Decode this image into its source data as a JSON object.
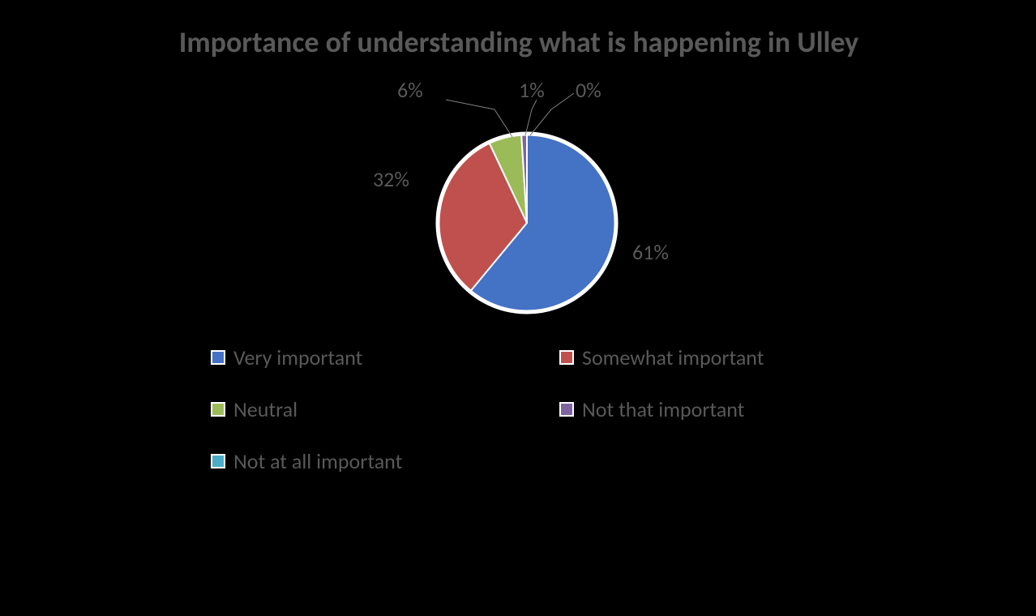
{
  "chart": {
    "type": "pie",
    "title": "Importance of understanding what is happening in Ulley",
    "title_color": "#595959",
    "title_fontsize": 36,
    "background_color": "#000000",
    "label_color": "#595959",
    "label_fontsize": 26,
    "legend_fontsize": 26,
    "pie_radius": 110,
    "pie_border_color": "#ffffff",
    "pie_border_width": 5,
    "leader_color": "#808080",
    "slices": [
      {
        "label": "Very important",
        "value": 61,
        "display": "61%",
        "color": "#4472c4"
      },
      {
        "label": "Somewhat important",
        "value": 32,
        "display": "32%",
        "color": "#c0504d"
      },
      {
        "label": "Neutral",
        "value": 6,
        "display": "6%",
        "color": "#9bbb59"
      },
      {
        "label": "Not that important",
        "value": 1,
        "display": "1%",
        "color": "#8064a2"
      },
      {
        "label": "Not at all important",
        "value": 0,
        "display": "0%",
        "color": "#4bacc6"
      }
    ]
  }
}
